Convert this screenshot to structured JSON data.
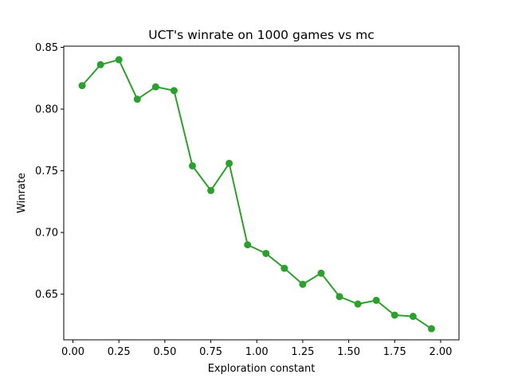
{
  "chart_data": {
    "type": "line",
    "title": "UCT's winrate on 1000 games vs mc",
    "xlabel": "Exploration constant",
    "ylabel": "Winrate",
    "xlim": [
      -0.05,
      2.1
    ],
    "ylim": [
      0.613,
      0.851
    ],
    "xticks": [
      "0.00",
      "0.25",
      "0.50",
      "0.75",
      "1.00",
      "1.25",
      "1.50",
      "1.75",
      "2.00"
    ],
    "yticks": [
      "0.65",
      "0.70",
      "0.75",
      "0.80",
      "0.85"
    ],
    "grid": false,
    "series": [
      {
        "color": "#2ca02c",
        "marker": "circle",
        "x": [
          0.05,
          0.15,
          0.25,
          0.35,
          0.45,
          0.55,
          0.65,
          0.75,
          0.85,
          0.95,
          1.05,
          1.15,
          1.25,
          1.35,
          1.45,
          1.55,
          1.65,
          1.75,
          1.85,
          1.95
        ],
        "values": [
          0.819,
          0.836,
          0.84,
          0.808,
          0.818,
          0.815,
          0.754,
          0.734,
          0.756,
          0.69,
          0.683,
          0.671,
          0.658,
          0.667,
          0.648,
          0.642,
          0.645,
          0.633,
          0.632,
          0.622
        ]
      }
    ]
  }
}
